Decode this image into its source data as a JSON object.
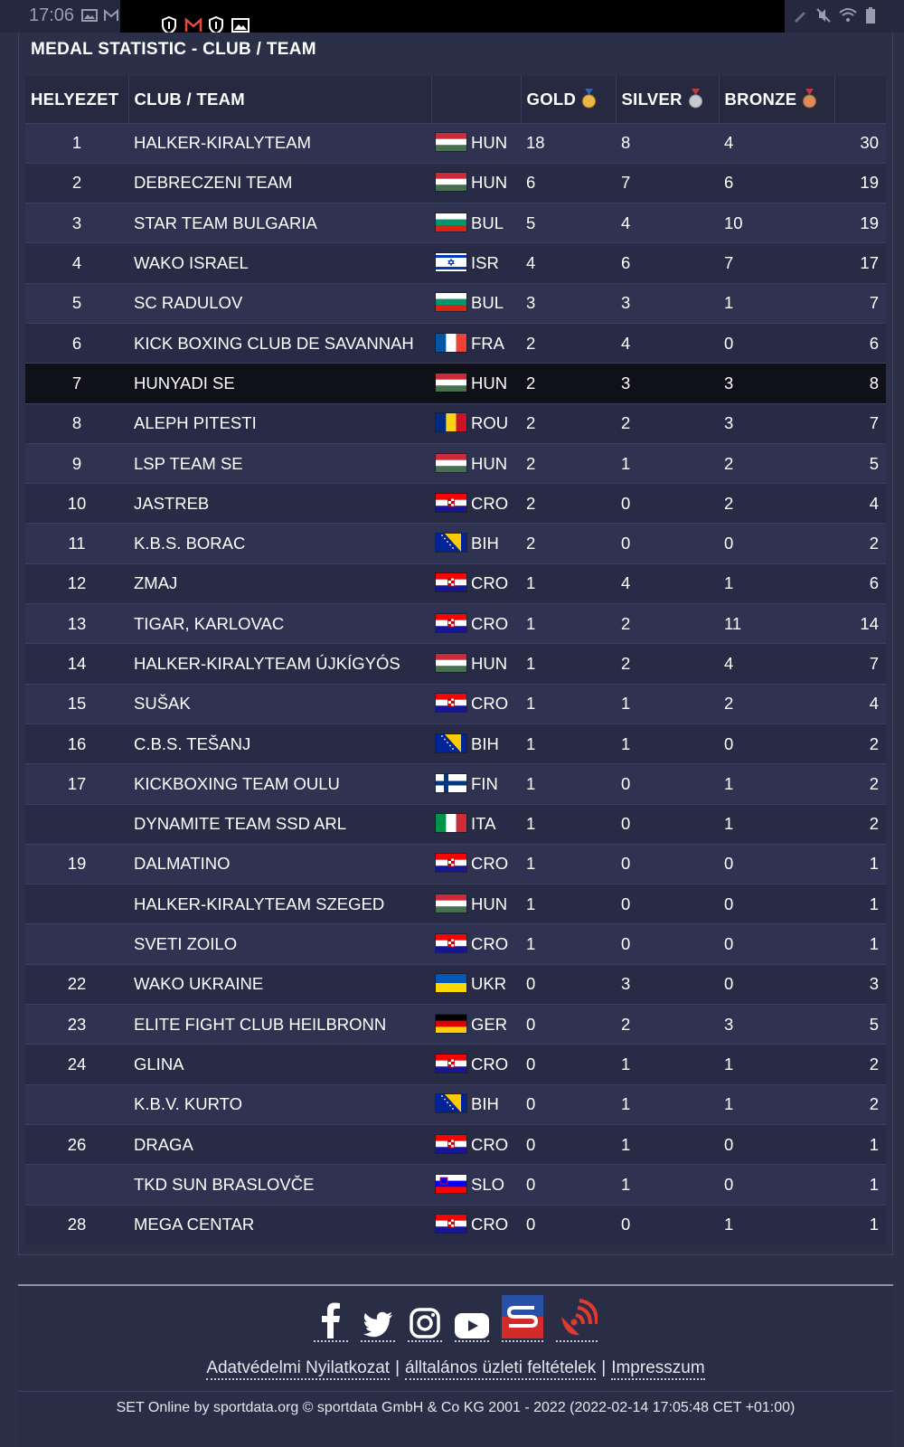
{
  "status_bar": {
    "time": "17:06"
  },
  "panel": {
    "title": "MEDAL STATISTIC - CLUB / TEAM"
  },
  "table": {
    "headers": {
      "rank": "HELYEZET",
      "club": "CLUB / TEAM",
      "country": "",
      "gold": "GOLD",
      "silver": "SILVER",
      "bronze": "BRONZE",
      "total": ""
    },
    "rows": [
      {
        "rank": "1",
        "club": "HALKER-KIRALYTEAM",
        "country": "HUN",
        "gold": "18",
        "silver": "8",
        "bronze": "4",
        "total": "30"
      },
      {
        "rank": "2",
        "club": "DEBRECZENI TEAM",
        "country": "HUN",
        "gold": "6",
        "silver": "7",
        "bronze": "6",
        "total": "19"
      },
      {
        "rank": "3",
        "club": "STAR TEAM BULGARIA",
        "country": "BUL",
        "gold": "5",
        "silver": "4",
        "bronze": "10",
        "total": "19"
      },
      {
        "rank": "4",
        "club": "WAKO ISRAEL",
        "country": "ISR",
        "gold": "4",
        "silver": "6",
        "bronze": "7",
        "total": "17"
      },
      {
        "rank": "5",
        "club": "SC RADULOV",
        "country": "BUL",
        "gold": "3",
        "silver": "3",
        "bronze": "1",
        "total": "7"
      },
      {
        "rank": "6",
        "club": "KICK BOXING CLUB DE SAVANNAH",
        "country": "FRA",
        "gold": "2",
        "silver": "4",
        "bronze": "0",
        "total": "6"
      },
      {
        "rank": "7",
        "club": "HUNYADI SE",
        "country": "HUN",
        "gold": "2",
        "silver": "3",
        "bronze": "3",
        "total": "8",
        "highlight": true
      },
      {
        "rank": "8",
        "club": "ALEPH PITESTI",
        "country": "ROU",
        "gold": "2",
        "silver": "2",
        "bronze": "3",
        "total": "7"
      },
      {
        "rank": "9",
        "club": "LSP TEAM SE",
        "country": "HUN",
        "gold": "2",
        "silver": "1",
        "bronze": "2",
        "total": "5"
      },
      {
        "rank": "10",
        "club": "JASTREB",
        "country": "CRO",
        "gold": "2",
        "silver": "0",
        "bronze": "2",
        "total": "4"
      },
      {
        "rank": "11",
        "club": "K.B.S. BORAC",
        "country": "BIH",
        "gold": "2",
        "silver": "0",
        "bronze": "0",
        "total": "2"
      },
      {
        "rank": "12",
        "club": "ZMAJ",
        "country": "CRO",
        "gold": "1",
        "silver": "4",
        "bronze": "1",
        "total": "6"
      },
      {
        "rank": "13",
        "club": "TIGAR, KARLOVAC",
        "country": "CRO",
        "gold": "1",
        "silver": "2",
        "bronze": "11",
        "total": "14"
      },
      {
        "rank": "14",
        "club": "HALKER-KIRALYTEAM ÚJKÍGYÓS",
        "country": "HUN",
        "gold": "1",
        "silver": "2",
        "bronze": "4",
        "total": "7"
      },
      {
        "rank": "15",
        "club": "SUŠAK",
        "country": "CRO",
        "gold": "1",
        "silver": "1",
        "bronze": "2",
        "total": "4"
      },
      {
        "rank": "16",
        "club": "C.B.S. TEŠANJ",
        "country": "BIH",
        "gold": "1",
        "silver": "1",
        "bronze": "0",
        "total": "2"
      },
      {
        "rank": "17",
        "club": "KICKBOXING TEAM OULU",
        "country": "FIN",
        "gold": "1",
        "silver": "0",
        "bronze": "1",
        "total": "2"
      },
      {
        "rank": "",
        "club": "DYNAMITE TEAM SSD ARL",
        "country": "ITA",
        "gold": "1",
        "silver": "0",
        "bronze": "1",
        "total": "2"
      },
      {
        "rank": "19",
        "club": "DALMATINO",
        "country": "CRO",
        "gold": "1",
        "silver": "0",
        "bronze": "0",
        "total": "1"
      },
      {
        "rank": "",
        "club": "HALKER-KIRALYTEAM SZEGED",
        "country": "HUN",
        "gold": "1",
        "silver": "0",
        "bronze": "0",
        "total": "1"
      },
      {
        "rank": "",
        "club": "SVETI ZOILO",
        "country": "CRO",
        "gold": "1",
        "silver": "0",
        "bronze": "0",
        "total": "1"
      },
      {
        "rank": "22",
        "club": "WAKO UKRAINE",
        "country": "UKR",
        "gold": "0",
        "silver": "3",
        "bronze": "0",
        "total": "3"
      },
      {
        "rank": "23",
        "club": "ELITE FIGHT CLUB HEILBRONN",
        "country": "GER",
        "gold": "0",
        "silver": "2",
        "bronze": "3",
        "total": "5"
      },
      {
        "rank": "24",
        "club": "GLINA",
        "country": "CRO",
        "gold": "0",
        "silver": "1",
        "bronze": "1",
        "total": "2"
      },
      {
        "rank": "",
        "club": "K.B.V. KURTO",
        "country": "BIH",
        "gold": "0",
        "silver": "1",
        "bronze": "1",
        "total": "2"
      },
      {
        "rank": "26",
        "club": "DRAGA",
        "country": "CRO",
        "gold": "0",
        "silver": "1",
        "bronze": "0",
        "total": "1"
      },
      {
        "rank": "",
        "club": "TKD SUN BRASLOVČE",
        "country": "SLO",
        "gold": "0",
        "silver": "1",
        "bronze": "0",
        "total": "1"
      },
      {
        "rank": "28",
        "club": "MEGA CENTAR",
        "country": "CRO",
        "gold": "0",
        "silver": "0",
        "bronze": "1",
        "total": "1"
      }
    ]
  },
  "colors": {
    "gold": "#e7b84a",
    "silver": "#c7c9cf",
    "bronze": "#d98e5a",
    "highlight_row": "#101118"
  },
  "footer": {
    "social_icons": [
      "facebook-icon",
      "twitter-icon",
      "instagram-icon",
      "youtube-icon",
      "sportdata-logo-icon",
      "live-broadcast-icon"
    ],
    "links": [
      "Adatvédelmi Nyilatkozat",
      "álltalános üzleti feltételek",
      "Impresszum"
    ],
    "link_separator": "|",
    "copyright": "SET Online by sportdata.org © sportdata GmbH & Co KG 2001 - 2022 (2022-02-14 17:05:48 CET +01:00)"
  }
}
